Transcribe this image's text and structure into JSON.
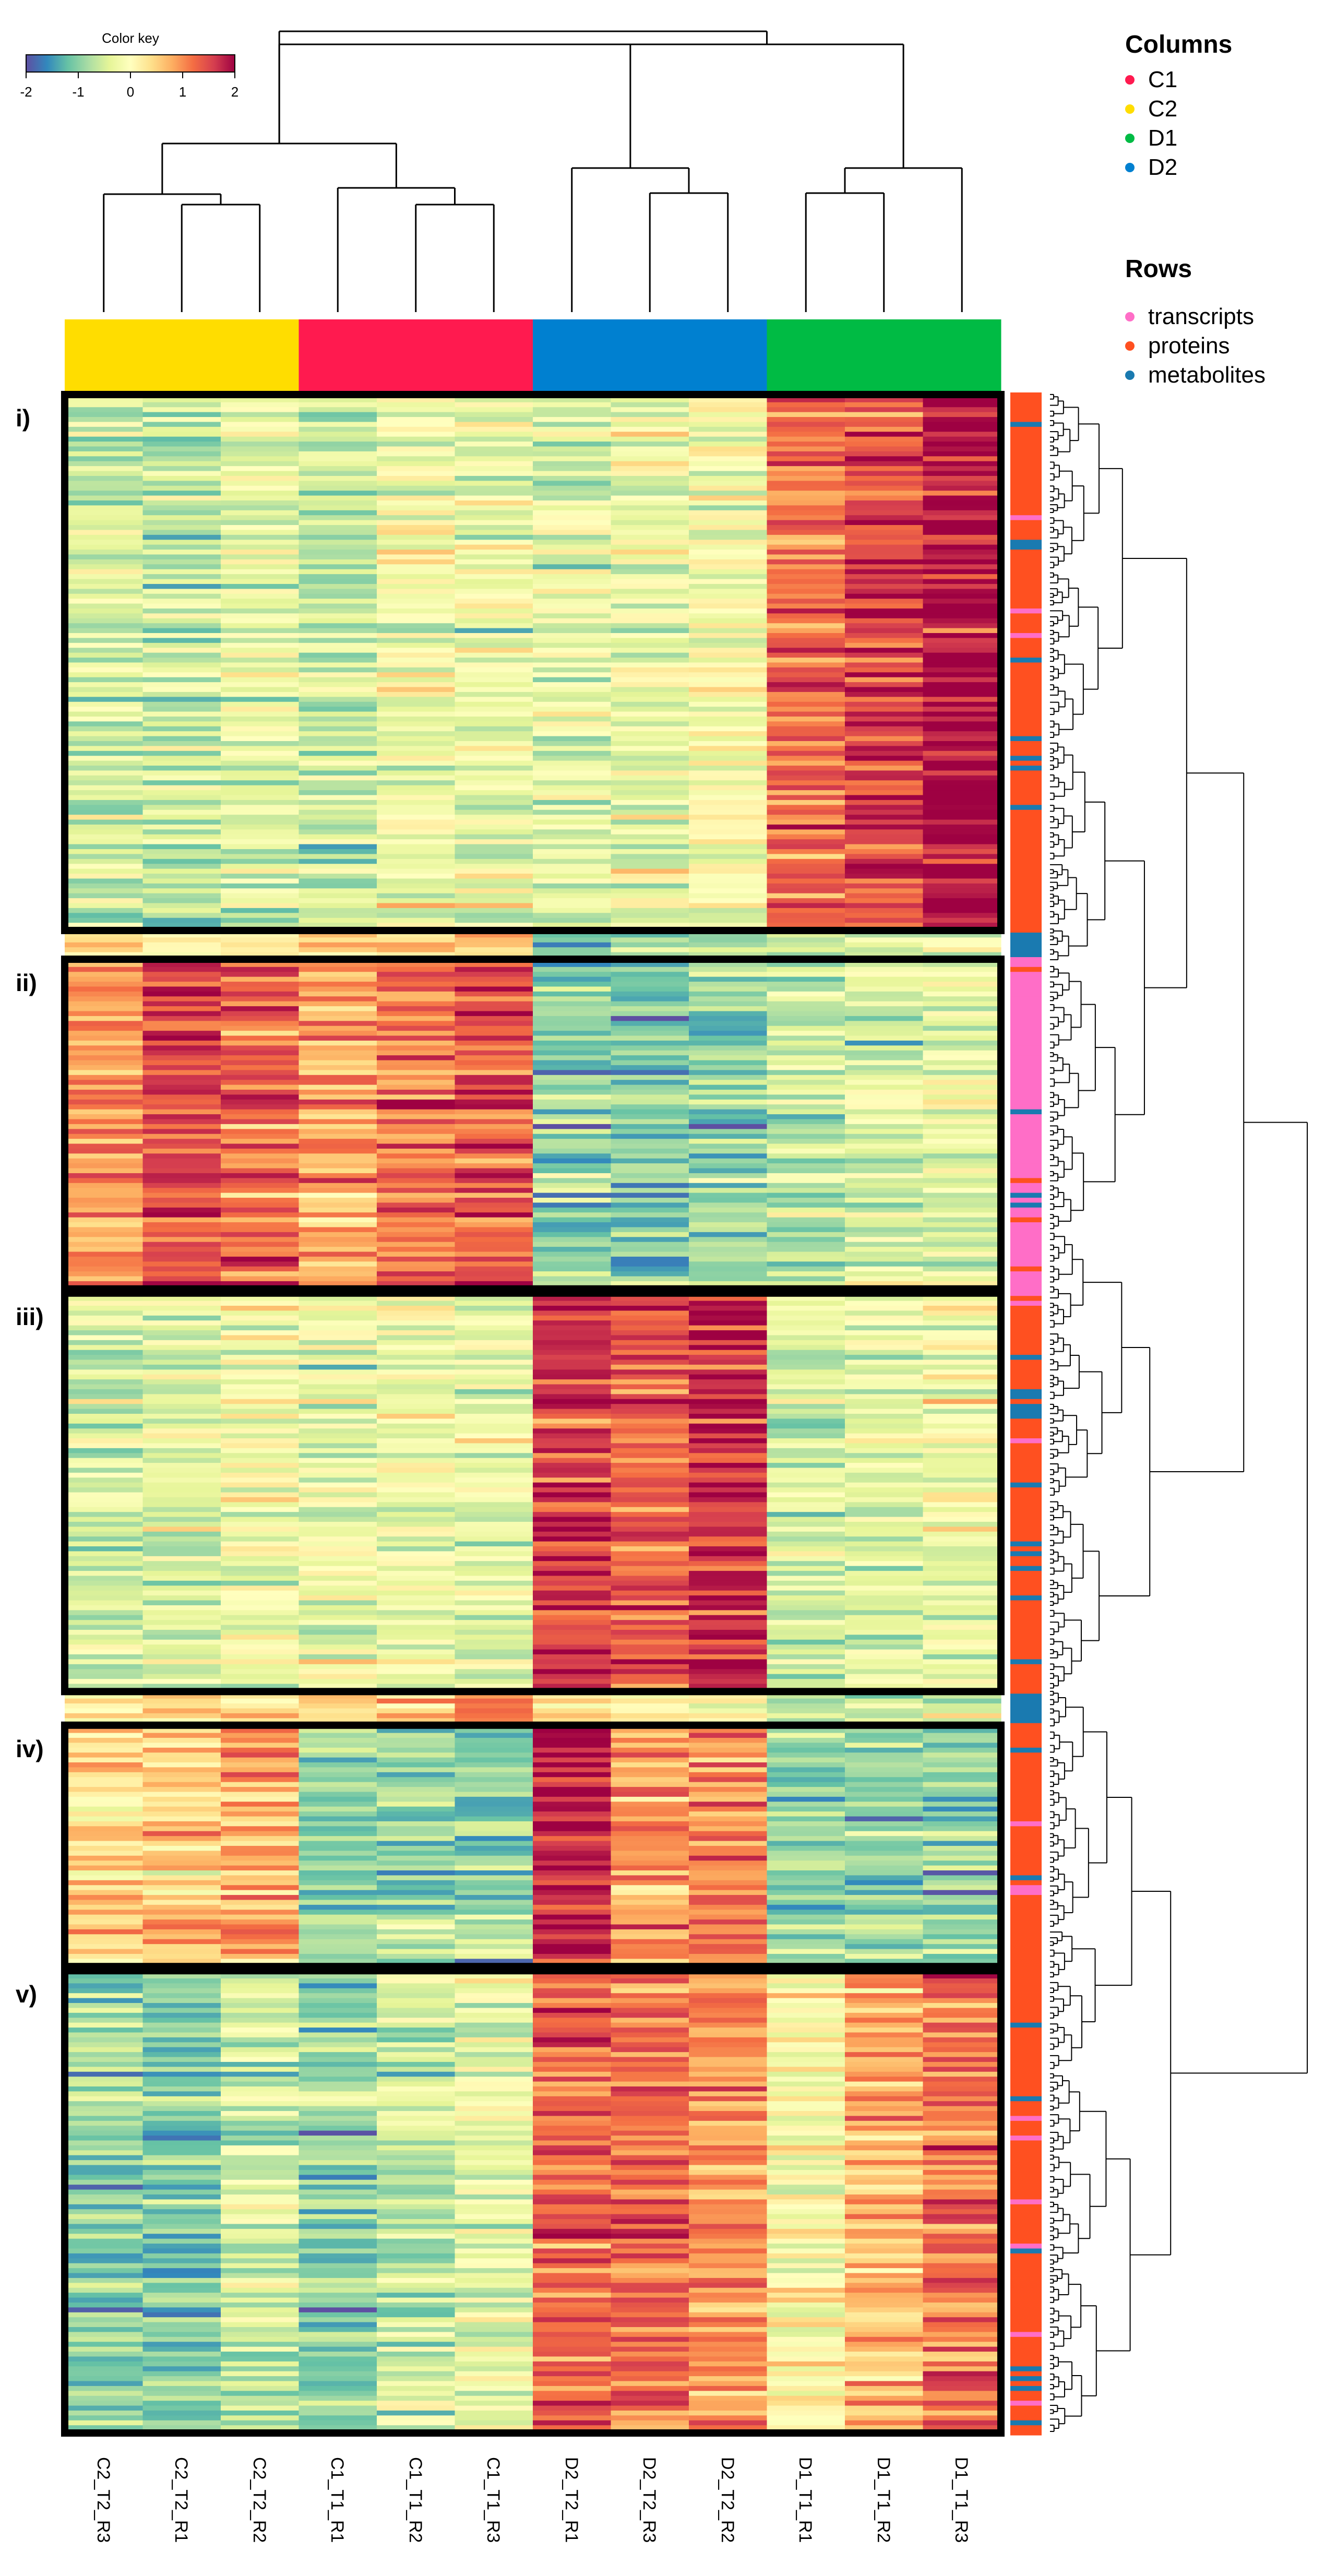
{
  "chart_data": {
    "type": "heatmap",
    "title": "",
    "color_key": {
      "title": "Color key",
      "ticks": [
        "-2",
        "-1",
        "0",
        "1",
        "2"
      ],
      "range": [
        -2,
        2
      ],
      "palette": [
        "#5e4fa2",
        "#3288bd",
        "#66c2a5",
        "#abdda4",
        "#e6f598",
        "#ffffbf",
        "#fee08b",
        "#fdae61",
        "#f46d43",
        "#d53e4f",
        "#9e0142"
      ]
    },
    "columns": [
      "C2_T2_R3",
      "C2_T2_R1",
      "C2_T2_R2",
      "C1_T1_R1",
      "C1_T1_R2",
      "C1_T1_R3",
      "D2_T2_R1",
      "D2_T2_R3",
      "D2_T2_R2",
      "D1_T1_R1",
      "D1_T1_R2",
      "D1_T1_R3"
    ],
    "column_groups": [
      "C2",
      "C2",
      "C2",
      "C1",
      "C1",
      "C1",
      "D2",
      "D2",
      "D2",
      "D1",
      "D1",
      "D1"
    ],
    "column_legend": {
      "title": "Columns",
      "items": [
        {
          "label": "C1",
          "color": "#ff1a4f"
        },
        {
          "label": "C2",
          "color": "#ffdd00"
        },
        {
          "label": "D1",
          "color": "#00bb44"
        },
        {
          "label": "D2",
          "color": "#0080d0"
        }
      ]
    },
    "row_legend": {
      "title": "Rows",
      "items": [
        {
          "label": "transcripts",
          "color": "#ff6ec7"
        },
        {
          "label": "proteins",
          "color": "#ff5020"
        },
        {
          "label": "metabolites",
          "color": "#1a7ab0"
        }
      ]
    },
    "clusters": [
      {
        "label": "i)",
        "rows": 110,
        "means": [
          -0.6,
          -0.6,
          -0.4,
          -0.6,
          -0.2,
          -0.3,
          -0.4,
          -0.3,
          -0.1,
          1.2,
          1.5,
          1.9
        ],
        "row_types": "proteins"
      },
      {
        "label": "",
        "rows": 5,
        "means": [
          0.3,
          0.3,
          0.2,
          0.4,
          0.4,
          0.3,
          -1.0,
          -0.8,
          -1.0,
          -0.8,
          -0.4,
          -0.5
        ],
        "row_types": "metabolites"
      },
      {
        "label": "ii)",
        "rows": 68,
        "means": [
          1.0,
          1.5,
          1.3,
          0.9,
          1.2,
          1.4,
          -1.0,
          -1.0,
          -0.9,
          -0.6,
          -0.4,
          -0.3
        ],
        "row_types": "transcripts"
      },
      {
        "label": "iii)",
        "rows": 82,
        "means": [
          -0.5,
          -0.4,
          -0.2,
          -0.3,
          -0.2,
          -0.3,
          1.6,
          1.3,
          1.7,
          -0.5,
          -0.4,
          -0.2
        ],
        "row_types": "proteins"
      },
      {
        "label": "",
        "rows": 6,
        "means": [
          0.4,
          0.5,
          0.4,
          0.6,
          0.8,
          1.2,
          0.6,
          0.4,
          0.2,
          -0.8,
          -0.6,
          -0.4
        ],
        "row_types": "metabolites"
      },
      {
        "label": "iv)",
        "rows": 50,
        "means": [
          0.4,
          0.5,
          0.8,
          -0.9,
          -0.9,
          -0.9,
          1.8,
          0.9,
          1.1,
          -0.9,
          -0.9,
          -0.9
        ],
        "row_types": "proteins"
      },
      {
        "label": "v)",
        "rows": 95,
        "means": [
          -0.9,
          -1.0,
          -0.6,
          -1.0,
          -0.6,
          -0.3,
          1.3,
          1.2,
          1.0,
          0.0,
          0.7,
          1.2
        ],
        "row_types": "proteins"
      }
    ]
  }
}
